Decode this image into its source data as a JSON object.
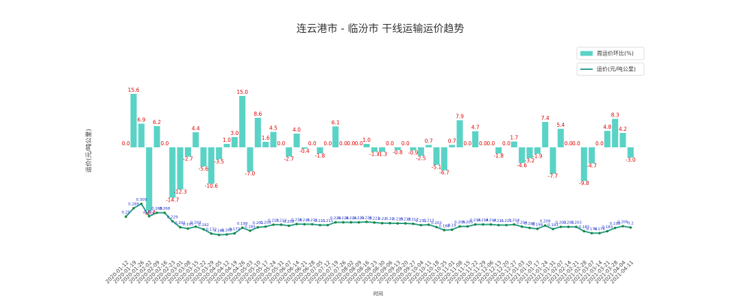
{
  "chart_data": {
    "type": "bar_line",
    "title": "连云港市 - 临汾市 干线运输运价趋势",
    "x_label": "时间",
    "y_label": "运价(元/吨公里)",
    "categories": [
      "2020-01-12",
      "2020-01-19",
      "2020-01-26",
      "2020-02-02",
      "2020-02-09",
      "2020-02-16",
      "2020-02-23",
      "2020-03-01",
      "2020-03-08",
      "2020-03-15",
      "2020-03-22",
      "2020-03-29",
      "2020-04-05",
      "2020-04-12",
      "2020-04-19",
      "2020-04-26",
      "2020-05-03",
      "2020-05-10",
      "2020-05-17",
      "2020-05-24",
      "2020-05-31",
      "2020-06-07",
      "2020-06-14",
      "2020-06-21",
      "2020-06-28",
      "2020-07-05",
      "2020-07-12",
      "2020-07-19",
      "2020-07-26",
      "2020-08-02",
      "2020-08-09",
      "2020-08-16",
      "2020-08-23",
      "2020-08-30",
      "2020-09-06",
      "2020-09-13",
      "2020-09-20",
      "2020-09-27",
      "2020-10-04",
      "2020-10-11",
      "2020-10-18",
      "2020-10-25",
      "2020-11-01",
      "2020-11-08",
      "2020-11-15",
      "2020-11-22",
      "2020-11-29",
      "2020-12-06",
      "2020-12-13",
      "2020-12-20",
      "2020-12-27",
      "2021-01-03",
      "2021-01-10",
      "2021-01-17",
      "2021-01-24",
      "2021-01-31",
      "2021-02-07",
      "2021-02-14",
      "2021-02-21",
      "2021-02-28",
      "2021-03-07",
      "2021-03-14",
      "2021-03-21",
      "2021-03-28",
      "2021-04-04",
      "2021-04-11"
    ],
    "series": [
      {
        "name": "周运价环比(%)",
        "kind": "bar",
        "axis": "y2",
        "color": "#5ad3c6",
        "label_color": "#e00000",
        "values": [
          0.0,
          15.6,
          6.9,
          -18.4,
          6.2,
          0.0,
          -14.7,
          -12.3,
          -2.7,
          4.4,
          -5.6,
          -10.6,
          -3.5,
          1.0,
          3.0,
          15.0,
          -7.0,
          8.6,
          1.6,
          4.5,
          0.0,
          -2.7,
          4.0,
          -0.4,
          0.0,
          -1.8,
          0.0,
          6.1,
          0.0,
          0.0,
          0.0,
          1.0,
          -1.3,
          -1.3,
          0.0,
          -0.8,
          0.0,
          -0.9,
          -2.5,
          0.7,
          -5.1,
          -6.7,
          0.7,
          7.9,
          0.0,
          4.7,
          0.0,
          0.0,
          -1.8,
          0.0,
          1.7,
          -4.6,
          -3.2,
          -1.9,
          7.4,
          -7.7,
          5.4,
          0.0,
          0.0,
          -9.8,
          -4.7,
          0.0,
          4.8,
          8.3,
          4.2,
          -3.0
        ],
        "value_labels": [
          "0.0",
          "15.6",
          "6.9",
          "-18.4",
          "6.2",
          "0.0",
          "-14.7",
          "-12.3",
          "-2.7",
          "4.4",
          "-5.6",
          "-10.6",
          "-3.5",
          "1.0",
          "3.0",
          "15.0",
          "-7.0",
          "8.6",
          "1.6",
          "4.5",
          "0.0",
          "-2.7",
          "4.0",
          "-0.4",
          "0.0",
          "-1.8",
          "0.0",
          "6.1",
          "0.0",
          "0.0",
          "0.0",
          "1.0",
          "-1.3",
          "-1.3",
          "0.0",
          "-0.8",
          "0.0",
          "-0.9",
          "-2.5",
          "0.7",
          "-5.1",
          "-6.7",
          "0.7",
          "7.9",
          "0.0",
          "4.7",
          "0.0",
          "0.0",
          "-1.8",
          "0.0",
          "1.7",
          "-4.6",
          "-3.2",
          "-1.9",
          "7.4",
          "-7.7",
          "5.4",
          "0.0",
          "0.0",
          "-9.8",
          "-4.7",
          "0.0",
          "4.8",
          "8.3",
          "4.2",
          "-3.0"
        ]
      },
      {
        "name": "运价(元/吨公里)",
        "kind": "line",
        "color": "#2a9d8f",
        "marker_color": "#1a8a3a",
        "label_color": "#2233cc",
        "values": [
          0.25,
          0.289,
          0.309,
          0.252,
          0.268,
          0.268,
          0.229,
          0.201,
          0.195,
          0.204,
          0.192,
          0.172,
          0.166,
          0.168,
          0.173,
          0.199,
          0.185,
          0.201,
          0.204,
          0.213,
          0.213,
          0.208,
          0.216,
          0.215,
          0.215,
          0.211,
          0.211,
          0.224,
          0.224,
          0.224,
          0.224,
          0.226,
          0.223,
          0.22,
          0.22,
          0.219,
          0.219,
          0.217,
          0.211,
          0.213,
          0.202,
          0.188,
          0.19,
          0.205,
          0.205,
          0.214,
          0.214,
          0.214,
          0.211,
          0.211,
          0.214,
          0.204,
          0.198,
          0.194,
          0.209,
          0.193,
          0.203,
          0.203,
          0.203,
          0.183,
          0.174,
          0.174,
          0.183,
          0.198,
          0.206,
          0.2
        ]
      }
    ],
    "ylim": [
      0.08,
      1.06
    ],
    "y2lim": [
      -31,
      31
    ],
    "legend": "upper right"
  }
}
